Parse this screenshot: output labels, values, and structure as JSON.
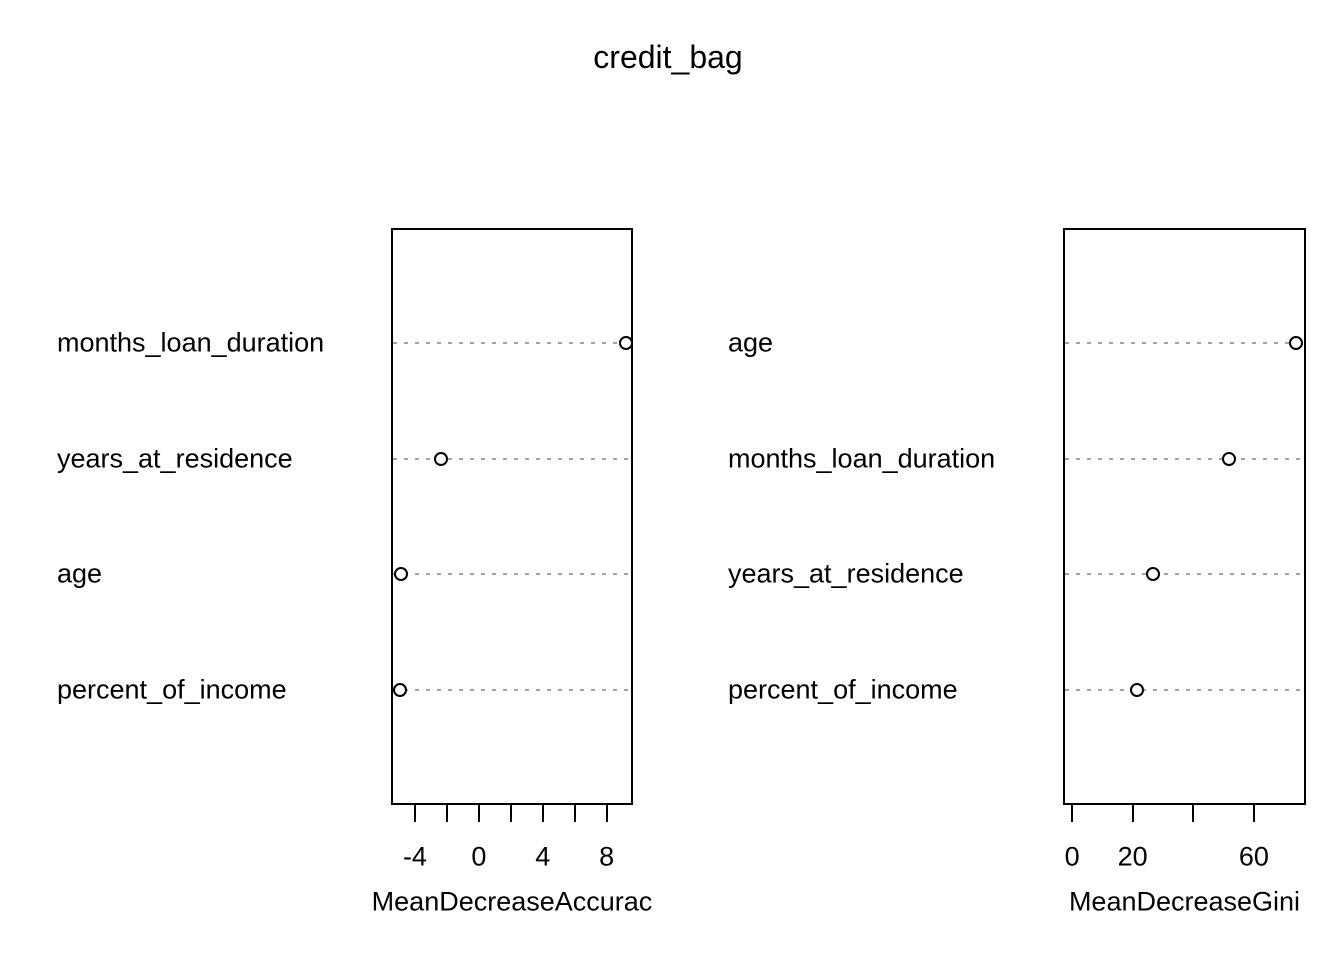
{
  "figure": {
    "title": "credit_bag",
    "background": "#ffffff",
    "line_color": "#000000",
    "grid_color": "#a3a3a3",
    "point_style": "open-circle"
  },
  "chart_data": [
    {
      "type": "scatter",
      "subtype": "dotchart",
      "title": "credit_bag",
      "xlabel": "MeanDecreaseAccuracy",
      "xlabel_displayed": "MeanDecreaseAccurac",
      "categories_top_to_bottom": [
        "months_loan_duration",
        "years_at_residence",
        "age",
        "percent_of_income"
      ],
      "values": [
        9.2,
        -2.4,
        -4.9,
        -4.95
      ],
      "xlim": [
        -5.5,
        9.65
      ],
      "xticks": [
        -4,
        -2,
        0,
        2,
        4,
        6,
        8
      ],
      "xtick_labels": [
        "-4",
        "",
        "0",
        "",
        "4",
        "",
        "8"
      ],
      "grid": "dashed-horizontal-rows",
      "legend": "none"
    },
    {
      "type": "scatter",
      "subtype": "dotchart",
      "title": "credit_bag",
      "xlabel": "MeanDecreaseGini",
      "xlabel_displayed": "MeanDecreaseGini",
      "categories_top_to_bottom": [
        "age",
        "months_loan_duration",
        "years_at_residence",
        "percent_of_income"
      ],
      "values": [
        74,
        51.8,
        26.6,
        21.3
      ],
      "xlim": [
        -3,
        77.2
      ],
      "xticks": [
        0,
        20,
        40,
        60
      ],
      "xtick_labels": [
        "0",
        "20",
        "",
        "60"
      ],
      "grid": "dashed-horizontal-rows",
      "legend": "none"
    }
  ]
}
